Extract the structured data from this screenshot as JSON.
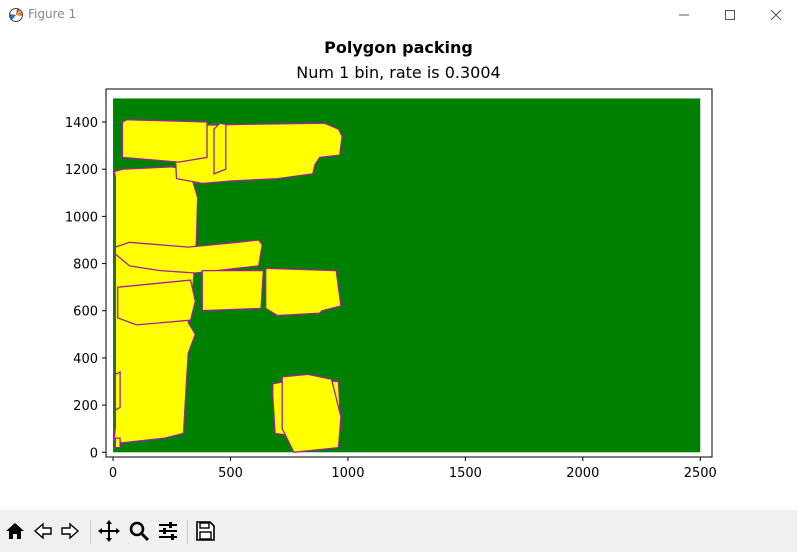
{
  "window": {
    "title": "Figure 1",
    "controls": [
      "minimize-icon",
      "maximize-icon",
      "close-icon"
    ]
  },
  "figure": {
    "title": "Polygon packing",
    "subtitle": "Num 1 bin, rate is 0.3004"
  },
  "colors": {
    "bin_fill": "#008000",
    "polygon_fill": "#ffff00",
    "polygon_edge": "#a020a0",
    "toolbar_bg": "#f0f0f0"
  },
  "chart_data": {
    "type": "polygon-packing",
    "bin": {
      "width": 2500,
      "height": 1500
    },
    "xlim": [
      -30,
      2550
    ],
    "ylim": [
      -20,
      1540
    ],
    "xticks": [
      0,
      500,
      1000,
      1500,
      2000,
      2500
    ],
    "yticks": [
      0,
      200,
      400,
      600,
      800,
      1000,
      1200,
      1400
    ],
    "polygons": [
      [
        [
          10,
          110
        ],
        [
          10,
          1170
        ],
        [
          5,
          1190
        ],
        [
          40,
          1200
        ],
        [
          250,
          1210
        ],
        [
          290,
          1200
        ],
        [
          330,
          1180
        ],
        [
          360,
          1080
        ],
        [
          355,
          900
        ],
        [
          340,
          700
        ],
        [
          330,
          600
        ],
        [
          320,
          550
        ],
        [
          350,
          500
        ],
        [
          320,
          420
        ],
        [
          310,
          260
        ],
        [
          300,
          80
        ],
        [
          220,
          60
        ],
        [
          40,
          40
        ],
        [
          5,
          50
        ]
      ],
      [
        [
          260,
          1370
        ],
        [
          260,
          1380
        ],
        [
          280,
          1385
        ],
        [
          560,
          1390
        ],
        [
          900,
          1395
        ],
        [
          960,
          1370
        ],
        [
          975,
          1340
        ],
        [
          965,
          1260
        ],
        [
          880,
          1250
        ],
        [
          860,
          1220
        ],
        [
          850,
          1180
        ],
        [
          700,
          1160
        ],
        [
          500,
          1150
        ],
        [
          380,
          1140
        ],
        [
          270,
          1160
        ]
      ],
      [
        [
          430,
          1180
        ],
        [
          430,
          1370
        ],
        [
          455,
          1395
        ],
        [
          480,
          1390
        ],
        [
          480,
          1200
        ]
      ],
      [
        [
          40,
          1330
        ],
        [
          40,
          1400
        ],
        [
          60,
          1410
        ],
        [
          400,
          1400
        ],
        [
          400,
          1250
        ],
        [
          280,
          1230
        ],
        [
          40,
          1250
        ]
      ],
      [
        [
          10,
          870
        ],
        [
          70,
          890
        ],
        [
          320,
          870
        ],
        [
          530,
          890
        ],
        [
          620,
          900
        ],
        [
          635,
          880
        ],
        [
          620,
          790
        ],
        [
          350,
          760
        ],
        [
          200,
          770
        ],
        [
          70,
          790
        ],
        [
          10,
          840
        ]
      ],
      [
        [
          20,
          570
        ],
        [
          20,
          700
        ],
        [
          330,
          730
        ],
        [
          350,
          640
        ],
        [
          330,
          560
        ],
        [
          100,
          540
        ]
      ],
      [
        [
          380,
          600
        ],
        [
          380,
          770
        ],
        [
          640,
          770
        ],
        [
          630,
          610
        ]
      ],
      [
        [
          650,
          610
        ],
        [
          650,
          780
        ],
        [
          950,
          770
        ],
        [
          970,
          620
        ],
        [
          890,
          600
        ],
        [
          880,
          590
        ],
        [
          700,
          580
        ]
      ],
      [
        [
          680,
          240
        ],
        [
          680,
          290
        ],
        [
          780,
          310
        ],
        [
          960,
          300
        ],
        [
          970,
          90
        ],
        [
          830,
          60
        ],
        [
          690,
          80
        ]
      ],
      [
        [
          720,
          100
        ],
        [
          720,
          320
        ],
        [
          830,
          330
        ],
        [
          930,
          310
        ],
        [
          970,
          150
        ],
        [
          960,
          20
        ],
        [
          770,
          0
        ]
      ],
      [
        [
          10,
          180
        ],
        [
          10,
          330
        ],
        [
          30,
          340
        ],
        [
          30,
          190
        ]
      ],
      [
        [
          10,
          20
        ],
        [
          10,
          60
        ],
        [
          30,
          60
        ],
        [
          30,
          20
        ]
      ]
    ]
  },
  "toolbar": {
    "buttons": [
      {
        "name": "home-icon"
      },
      {
        "name": "back-icon"
      },
      {
        "name": "forward-icon"
      },
      {
        "name": "pan-icon"
      },
      {
        "name": "zoom-icon"
      },
      {
        "name": "configure-subplots-icon"
      },
      {
        "name": "save-icon"
      }
    ]
  }
}
